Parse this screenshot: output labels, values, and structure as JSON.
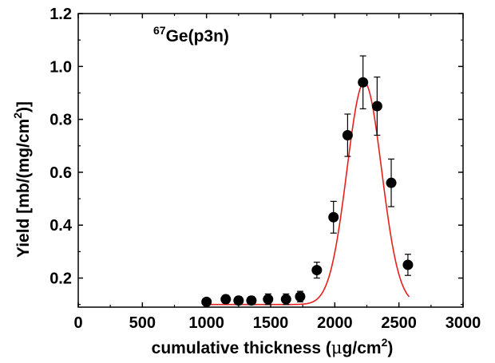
{
  "chart_data": {
    "type": "scatter",
    "title": {
      "superscript": "67",
      "text": "Ge(p3n)"
    },
    "xlabel": {
      "prefix": "cumulative thickness (",
      "mu": "μ",
      "unit": "g/cm",
      "exp": "2",
      "suffix": ")"
    },
    "ylabel": {
      "prefix": "Yield [mb/(mg/cm",
      "exp": "2",
      "suffix": ")]"
    },
    "xlim": [
      0,
      3000
    ],
    "ylim": [
      0.09,
      1.2
    ],
    "xticks": [
      0,
      500,
      1000,
      1500,
      2000,
      2500,
      3000
    ],
    "xtick_labels": [
      "0",
      "500",
      "1000",
      "1500",
      "2000",
      "2500",
      "3000"
    ],
    "yticks": [
      0.2,
      0.4,
      0.6,
      0.8,
      1.0,
      1.2
    ],
    "ytick_labels": [
      "0.2",
      "0.4",
      "0.6",
      "0.8",
      "1.0",
      "1.2"
    ],
    "grid": false,
    "series": [
      {
        "marker": "filled-circle",
        "color": "#000000",
        "points": [
          {
            "x": 1000,
            "y": 0.11,
            "err": 0.01
          },
          {
            "x": 1150,
            "y": 0.12,
            "err": 0.015
          },
          {
            "x": 1250,
            "y": 0.115,
            "err": 0.015
          },
          {
            "x": 1350,
            "y": 0.115,
            "err": 0.015
          },
          {
            "x": 1480,
            "y": 0.12,
            "err": 0.02
          },
          {
            "x": 1620,
            "y": 0.12,
            "err": 0.02
          },
          {
            "x": 1730,
            "y": 0.13,
            "err": 0.02
          },
          {
            "x": 1860,
            "y": 0.23,
            "err": 0.03
          },
          {
            "x": 1990,
            "y": 0.43,
            "err": 0.06
          },
          {
            "x": 2100,
            "y": 0.74,
            "err": 0.08
          },
          {
            "x": 2220,
            "y": 0.94,
            "err": 0.1
          },
          {
            "x": 2330,
            "y": 0.85,
            "err": 0.11
          },
          {
            "x": 2440,
            "y": 0.56,
            "err": 0.09
          },
          {
            "x": 2570,
            "y": 0.25,
            "err": 0.04
          }
        ]
      }
    ],
    "fit": {
      "type": "gaussian",
      "color": "#e8201c",
      "baseline": 0.1,
      "amplitude": 0.84,
      "center": 2230,
      "sigma": 135,
      "x_range": [
        1000,
        2580
      ]
    }
  }
}
